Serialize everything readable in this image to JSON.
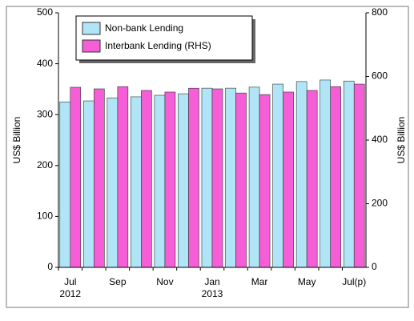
{
  "chart_data": {
    "type": "bar",
    "categories": [
      "Jul",
      null,
      "Sep",
      null,
      "Nov",
      null,
      "Jan",
      null,
      "Mar",
      null,
      "May",
      null,
      "Jul(p)"
    ],
    "year_labels": [
      "2012",
      null,
      null,
      null,
      null,
      null,
      "2013",
      null,
      null,
      null,
      null,
      null,
      null
    ],
    "series": [
      {
        "name": "Non-bank Lending",
        "color": "#b0e4f7",
        "values": [
          325,
          327,
          333,
          335,
          338,
          341,
          352,
          352,
          354,
          360,
          365,
          368,
          366
        ]
      },
      {
        "name": "Interbank Lending (RHS)",
        "color": "#f55ed6",
        "axis": "y2",
        "values": [
          566,
          561,
          568,
          556,
          551,
          563,
          561,
          548,
          543,
          551,
          556,
          568,
          576
        ]
      }
    ],
    "ylabel": "US$ Billion",
    "y2label": "US$ Billion",
    "ylim": [
      0,
      500
    ],
    "yticks": [
      0,
      100,
      200,
      300,
      400,
      500
    ],
    "y2lim": [
      0,
      800
    ],
    "y2ticks": [
      0,
      200,
      400,
      600,
      800
    ],
    "legend": "upper left"
  }
}
